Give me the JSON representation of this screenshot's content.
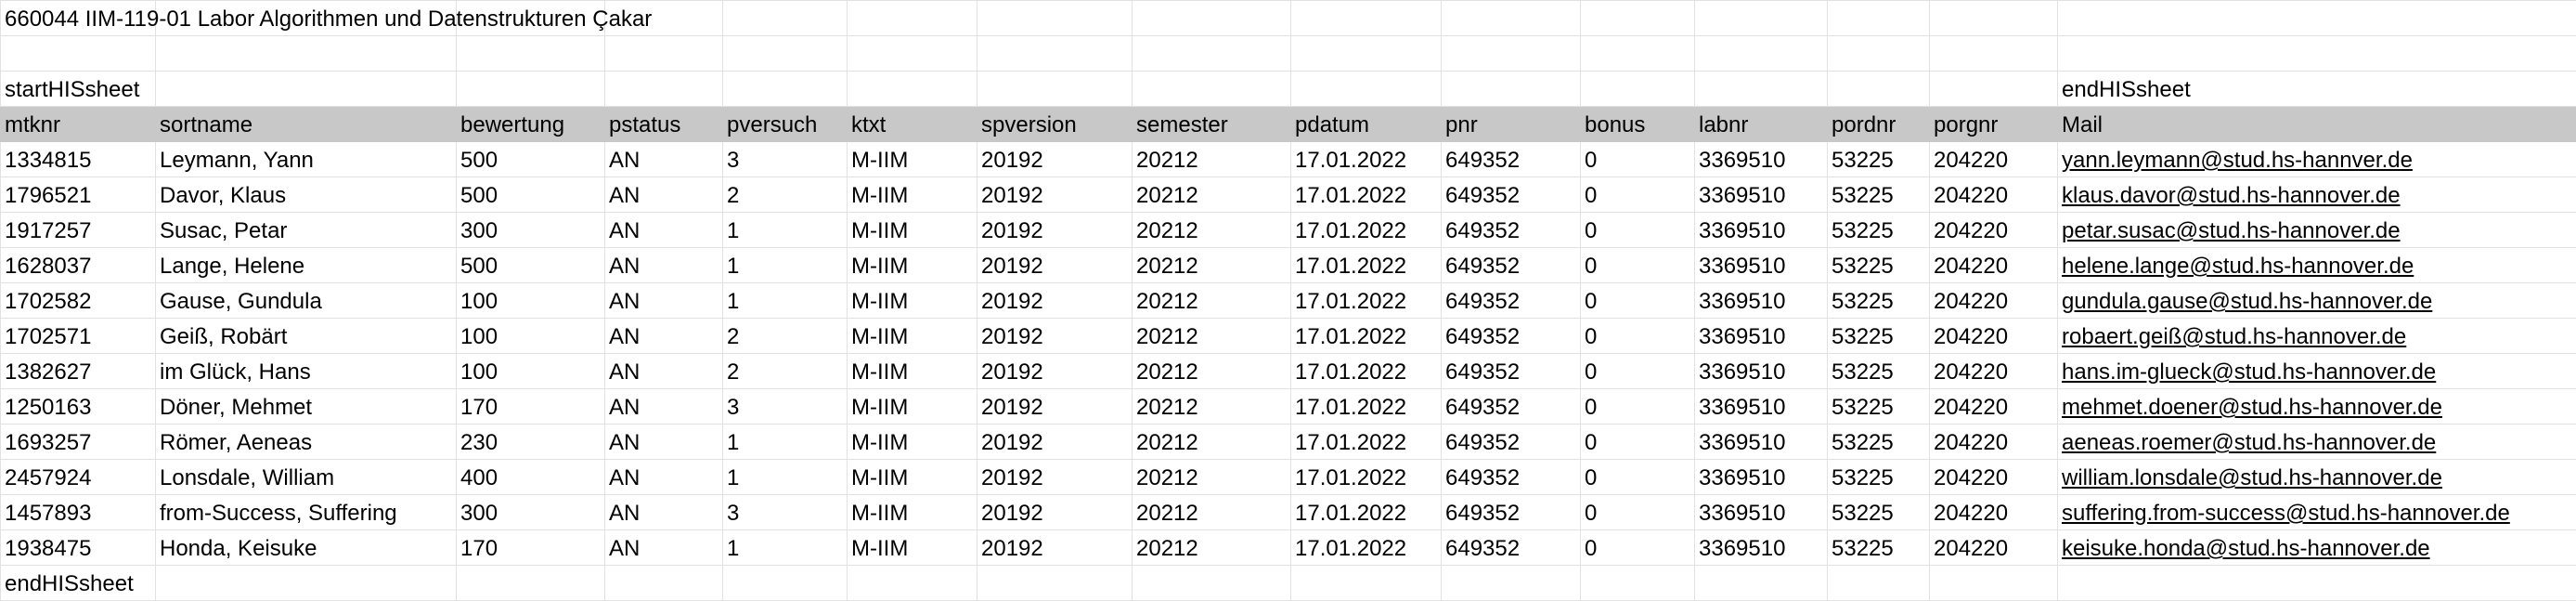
{
  "title_line": "660044  IIM-119-01  Labor Algorithmen und Datenstrukturen  Çakar",
  "start_marker": "startHISsheet",
  "end_marker_top": "endHISsheet",
  "end_marker_bottom": "endHISsheet",
  "columns": [
    "mtknr",
    "sortname",
    "bewertung",
    "pstatus",
    "pversuch",
    "ktxt",
    "spversion",
    "semester",
    "pdatum",
    "pnr",
    "bonus",
    "labnr",
    "pordnr",
    "porgnr",
    "Mail"
  ],
  "rows": [
    [
      "1334815",
      "Leymann, Yann",
      "500",
      "AN",
      "3",
      "M-IIM",
      "20192",
      "20212",
      "17.01.2022",
      "649352",
      "0",
      "3369510",
      "53225",
      "204220",
      "yann.leymann@stud.hs-hannver.de"
    ],
    [
      "1796521",
      "Davor, Klaus",
      "500",
      "AN",
      "2",
      "M-IIM",
      "20192",
      "20212",
      "17.01.2022",
      "649352",
      "0",
      "3369510",
      "53225",
      "204220",
      "klaus.davor@stud.hs-hannover.de"
    ],
    [
      "1917257",
      "Susac, Petar",
      "300",
      "AN",
      "1",
      "M-IIM",
      "20192",
      "20212",
      "17.01.2022",
      "649352",
      "0",
      "3369510",
      "53225",
      "204220",
      "petar.susac@stud.hs-hannover.de"
    ],
    [
      "1628037",
      "Lange, Helene",
      "500",
      "AN",
      "1",
      "M-IIM",
      "20192",
      "20212",
      "17.01.2022",
      "649352",
      "0",
      "3369510",
      "53225",
      "204220",
      "helene.lange@stud.hs-hannover.de"
    ],
    [
      "1702582",
      "Gause, Gundula",
      "100",
      "AN",
      "1",
      "M-IIM",
      "20192",
      "20212",
      "17.01.2022",
      "649352",
      "0",
      "3369510",
      "53225",
      "204220",
      "gundula.gause@stud.hs-hannover.de"
    ],
    [
      "1702571",
      "Geiß, Robärt",
      "100",
      "AN",
      "2",
      "M-IIM",
      "20192",
      "20212",
      "17.01.2022",
      "649352",
      "0",
      "3369510",
      "53225",
      "204220",
      "robaert.geiß@stud.hs-hannover.de"
    ],
    [
      "1382627",
      "im Glück, Hans",
      "100",
      "AN",
      "2",
      "M-IIM",
      "20192",
      "20212",
      "17.01.2022",
      "649352",
      "0",
      "3369510",
      "53225",
      "204220",
      "hans.im-glueck@stud.hs-hannover.de"
    ],
    [
      "1250163",
      "Döner, Mehmet",
      "170",
      "AN",
      "3",
      "M-IIM",
      "20192",
      "20212",
      "17.01.2022",
      "649352",
      "0",
      "3369510",
      "53225",
      "204220",
      "mehmet.doener@stud.hs-hannover.de"
    ],
    [
      "1693257",
      "Römer, Aeneas",
      "230",
      "AN",
      "1",
      "M-IIM",
      "20192",
      "20212",
      "17.01.2022",
      "649352",
      "0",
      "3369510",
      "53225",
      "204220",
      "aeneas.roemer@stud.hs-hannover.de"
    ],
    [
      "2457924",
      "Lonsdale, William",
      "400",
      "AN",
      "1",
      "M-IIM",
      "20192",
      "20212",
      "17.01.2022",
      "649352",
      "0",
      "3369510",
      "53225",
      "204220",
      "william.lonsdale@stud.hs-hannover.de"
    ],
    [
      "1457893",
      "from-Success, Suffering",
      "300",
      "AN",
      "3",
      "M-IIM",
      "20192",
      "20212",
      "17.01.2022",
      "649352",
      "0",
      "3369510",
      "53225",
      "204220",
      "suffering.from-success@stud.hs-hannover.de"
    ],
    [
      "1938475",
      "Honda, Keisuke",
      "170",
      "AN",
      "1",
      "M-IIM",
      "20192",
      "20212",
      "17.01.2022",
      "649352",
      "0",
      "3369510",
      "53225",
      "204220",
      "keisuke.honda@stud.hs-hannover.de"
    ]
  ],
  "colors": {
    "header_bg": "#c8c8c8",
    "link": "#0563c1",
    "gridline": "#e1e1e1"
  }
}
